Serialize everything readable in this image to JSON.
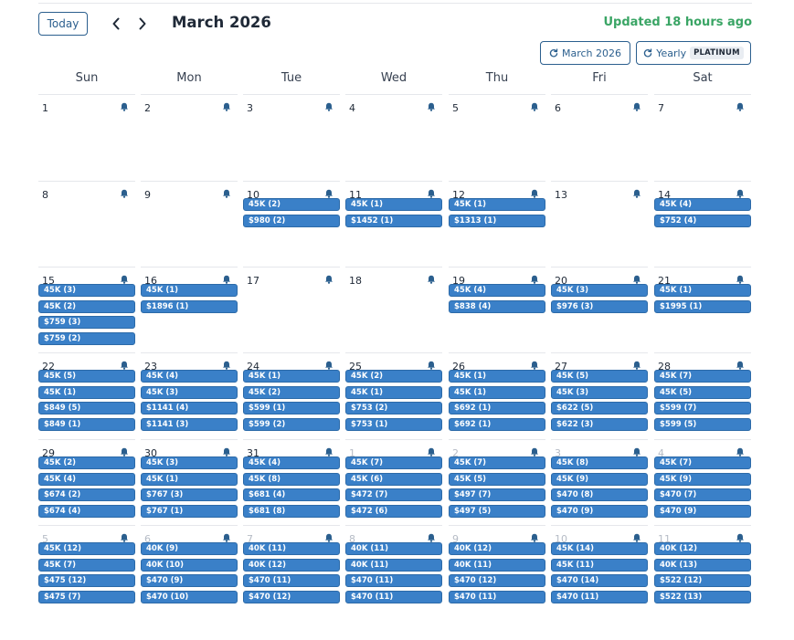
{
  "header": {
    "today_label": "Today",
    "month_title": "March 2026",
    "updated_text": "Updated 18 hours ago",
    "month_button_label": "March 2026",
    "yearly_button_label": "Yearly",
    "platinum_badge": "PLATINUM"
  },
  "weekdays": [
    "Sun",
    "Mon",
    "Tue",
    "Wed",
    "Thu",
    "Fri",
    "Sat"
  ],
  "colors": {
    "accent": "#2b5f8e",
    "event_bg": "#3a80c8",
    "updated_green": "#3aa565",
    "bell": "#2b5f8e"
  },
  "weeks": [
    [
      {
        "day": "1",
        "in_month": true,
        "events": []
      },
      {
        "day": "2",
        "in_month": true,
        "events": []
      },
      {
        "day": "3",
        "in_month": true,
        "events": []
      },
      {
        "day": "4",
        "in_month": true,
        "events": []
      },
      {
        "day": "5",
        "in_month": true,
        "events": []
      },
      {
        "day": "6",
        "in_month": true,
        "events": []
      },
      {
        "day": "7",
        "in_month": true,
        "events": []
      }
    ],
    [
      {
        "day": "8",
        "in_month": true,
        "events": []
      },
      {
        "day": "9",
        "in_month": true,
        "events": []
      },
      {
        "day": "10",
        "in_month": true,
        "events": [
          "45K (2)",
          "$980 (2)"
        ]
      },
      {
        "day": "11",
        "in_month": true,
        "events": [
          "45K (1)",
          "$1452 (1)"
        ]
      },
      {
        "day": "12",
        "in_month": true,
        "events": [
          "45K (1)",
          "$1313 (1)"
        ]
      },
      {
        "day": "13",
        "in_month": true,
        "events": []
      },
      {
        "day": "14",
        "in_month": true,
        "events": [
          "45K (4)",
          "$752 (4)"
        ]
      }
    ],
    [
      {
        "day": "15",
        "in_month": true,
        "events": [
          "45K (3)",
          "45K (2)",
          "$759 (3)",
          "$759 (2)"
        ]
      },
      {
        "day": "16",
        "in_month": true,
        "events": [
          "45K (1)",
          "$1896 (1)"
        ]
      },
      {
        "day": "17",
        "in_month": true,
        "events": []
      },
      {
        "day": "18",
        "in_month": true,
        "events": []
      },
      {
        "day": "19",
        "in_month": true,
        "events": [
          "45K (4)",
          "$838 (4)"
        ]
      },
      {
        "day": "20",
        "in_month": true,
        "events": [
          "45K (3)",
          "$976 (3)"
        ]
      },
      {
        "day": "21",
        "in_month": true,
        "events": [
          "45K (1)",
          "$1995 (1)"
        ]
      }
    ],
    [
      {
        "day": "22",
        "in_month": true,
        "events": [
          "45K (5)",
          "45K (1)",
          "$849 (5)",
          "$849 (1)"
        ]
      },
      {
        "day": "23",
        "in_month": true,
        "events": [
          "45K (4)",
          "45K (3)",
          "$1141 (4)",
          "$1141 (3)"
        ]
      },
      {
        "day": "24",
        "in_month": true,
        "events": [
          "45K (1)",
          "45K (2)",
          "$599 (1)",
          "$599 (2)"
        ]
      },
      {
        "day": "25",
        "in_month": true,
        "events": [
          "45K (2)",
          "45K (1)",
          "$753 (2)",
          "$753 (1)"
        ]
      },
      {
        "day": "26",
        "in_month": true,
        "events": [
          "45K (1)",
          "45K (1)",
          "$692 (1)",
          "$692 (1)"
        ]
      },
      {
        "day": "27",
        "in_month": true,
        "events": [
          "45K (5)",
          "45K (3)",
          "$622 (5)",
          "$622 (3)"
        ]
      },
      {
        "day": "28",
        "in_month": true,
        "events": [
          "45K (7)",
          "45K (5)",
          "$599 (7)",
          "$599 (5)"
        ]
      }
    ],
    [
      {
        "day": "29",
        "in_month": true,
        "events": [
          "45K (2)",
          "45K (4)",
          "$674 (2)",
          "$674 (4)"
        ]
      },
      {
        "day": "30",
        "in_month": true,
        "events": [
          "45K (3)",
          "45K (1)",
          "$767 (3)",
          "$767 (1)"
        ]
      },
      {
        "day": "31",
        "in_month": true,
        "events": [
          "45K (4)",
          "45K (8)",
          "$681 (4)",
          "$681 (8)"
        ]
      },
      {
        "day": "1",
        "in_month": false,
        "events": [
          "45K (7)",
          "45K (6)",
          "$472 (7)",
          "$472 (6)"
        ]
      },
      {
        "day": "2",
        "in_month": false,
        "events": [
          "45K (7)",
          "45K (5)",
          "$497 (7)",
          "$497 (5)"
        ]
      },
      {
        "day": "3",
        "in_month": false,
        "events": [
          "45K (8)",
          "45K (9)",
          "$470 (8)",
          "$470 (9)"
        ]
      },
      {
        "day": "4",
        "in_month": false,
        "events": [
          "45K (7)",
          "45K (9)",
          "$470 (7)",
          "$470 (9)"
        ]
      }
    ],
    [
      {
        "day": "5",
        "in_month": false,
        "events": [
          "45K (12)",
          "45K (7)",
          "$475 (12)",
          "$475 (7)"
        ]
      },
      {
        "day": "6",
        "in_month": false,
        "events": [
          "40K (9)",
          "40K (10)",
          "$470 (9)",
          "$470 (10)"
        ]
      },
      {
        "day": "7",
        "in_month": false,
        "events": [
          "40K (11)",
          "40K (12)",
          "$470 (11)",
          "$470 (12)"
        ]
      },
      {
        "day": "8",
        "in_month": false,
        "events": [
          "40K (11)",
          "40K (11)",
          "$470 (11)",
          "$470 (11)"
        ]
      },
      {
        "day": "9",
        "in_month": false,
        "events": [
          "40K (12)",
          "40K (11)",
          "$470 (12)",
          "$470 (11)"
        ]
      },
      {
        "day": "10",
        "in_month": false,
        "events": [
          "45K (14)",
          "45K (11)",
          "$470 (14)",
          "$470 (11)"
        ]
      },
      {
        "day": "11",
        "in_month": false,
        "events": [
          "40K (12)",
          "40K (13)",
          "$522 (12)",
          "$522 (13)"
        ]
      }
    ]
  ]
}
